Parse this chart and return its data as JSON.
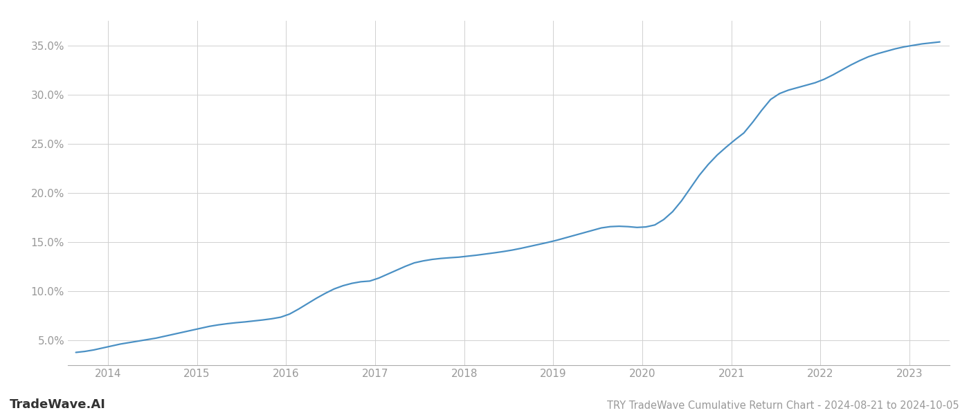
{
  "title": "TRY TradeWave Cumulative Return Chart - 2024-08-21 to 2024-10-05",
  "watermark": "TradeWave.AI",
  "line_color": "#4a90c4",
  "background_color": "#ffffff",
  "grid_color": "#d0d0d0",
  "x_years": [
    2014,
    2015,
    2016,
    2017,
    2018,
    2019,
    2020,
    2021,
    2022,
    2023
  ],
  "x_data": [
    2013.64,
    2013.74,
    2013.84,
    2013.94,
    2014.04,
    2014.14,
    2014.24,
    2014.34,
    2014.44,
    2014.54,
    2014.64,
    2014.74,
    2014.84,
    2014.94,
    2015.04,
    2015.14,
    2015.24,
    2015.34,
    2015.44,
    2015.54,
    2015.64,
    2015.74,
    2015.84,
    2015.94,
    2016.04,
    2016.14,
    2016.24,
    2016.34,
    2016.44,
    2016.54,
    2016.64,
    2016.74,
    2016.84,
    2016.94,
    2017.04,
    2017.14,
    2017.24,
    2017.34,
    2017.44,
    2017.54,
    2017.64,
    2017.74,
    2017.84,
    2017.94,
    2018.04,
    2018.14,
    2018.24,
    2018.34,
    2018.44,
    2018.54,
    2018.64,
    2018.74,
    2018.84,
    2018.94,
    2019.04,
    2019.14,
    2019.24,
    2019.34,
    2019.44,
    2019.54,
    2019.64,
    2019.74,
    2019.84,
    2019.94,
    2020.04,
    2020.14,
    2020.24,
    2020.34,
    2020.44,
    2020.54,
    2020.64,
    2020.74,
    2020.84,
    2020.94,
    2021.04,
    2021.14,
    2021.24,
    2021.34,
    2021.44,
    2021.54,
    2021.64,
    2021.74,
    2021.84,
    2021.94,
    2022.04,
    2022.14,
    2022.24,
    2022.34,
    2022.44,
    2022.54,
    2022.64,
    2022.74,
    2022.84,
    2022.94,
    2023.04,
    2023.14,
    2023.24,
    2023.34
  ],
  "y_data": [
    3.8,
    3.9,
    4.05,
    4.25,
    4.45,
    4.65,
    4.8,
    4.95,
    5.1,
    5.25,
    5.45,
    5.65,
    5.85,
    6.05,
    6.25,
    6.45,
    6.6,
    6.72,
    6.82,
    6.9,
    7.0,
    7.1,
    7.22,
    7.38,
    7.7,
    8.2,
    8.75,
    9.3,
    9.8,
    10.25,
    10.58,
    10.82,
    10.98,
    11.05,
    11.35,
    11.75,
    12.15,
    12.55,
    12.9,
    13.1,
    13.25,
    13.35,
    13.42,
    13.48,
    13.58,
    13.68,
    13.8,
    13.92,
    14.05,
    14.2,
    14.38,
    14.58,
    14.78,
    14.98,
    15.2,
    15.45,
    15.7,
    15.95,
    16.2,
    16.45,
    16.58,
    16.62,
    16.58,
    16.5,
    16.55,
    16.75,
    17.3,
    18.1,
    19.2,
    20.5,
    21.8,
    22.9,
    23.85,
    24.65,
    25.4,
    26.1,
    27.2,
    28.4,
    29.5,
    30.1,
    30.45,
    30.7,
    30.95,
    31.2,
    31.55,
    32.0,
    32.5,
    33.0,
    33.45,
    33.85,
    34.15,
    34.4,
    34.65,
    34.85,
    35.0,
    35.15,
    35.25,
    35.35
  ],
  "ylim": [
    2.5,
    37.5
  ],
  "yticks": [
    5.0,
    10.0,
    15.0,
    20.0,
    25.0,
    30.0,
    35.0
  ],
  "xlim_min": 2013.55,
  "xlim_max": 2023.45,
  "title_fontsize": 10.5,
  "tick_color": "#999999",
  "tick_fontsize": 11,
  "watermark_fontsize": 13,
  "line_width": 1.6
}
